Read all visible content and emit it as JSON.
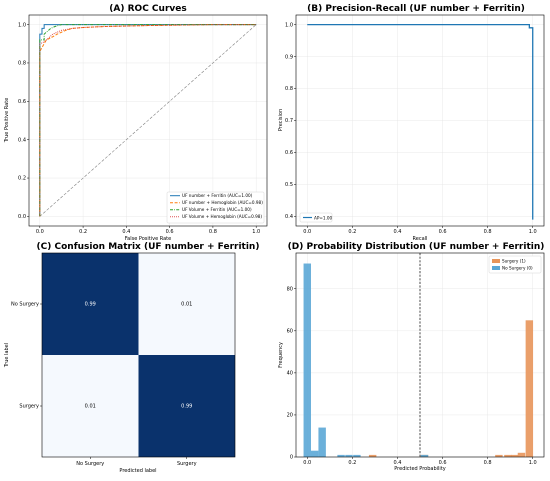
{
  "chart_data": [
    {
      "type": "line",
      "title": "(A) ROC Curves",
      "xlabel": "False Positive Rate",
      "ylabel": "True Positive Rate",
      "xlim": [
        -0.05,
        1.05
      ],
      "ylim": [
        -0.05,
        1.05
      ],
      "xticks": [
        "0.0",
        "0.2",
        "0.4",
        "0.6",
        "0.8",
        "1.0"
      ],
      "yticks": [
        "0.0",
        "0.2",
        "0.4",
        "0.6",
        "0.8",
        "1.0"
      ],
      "grid": true,
      "legend": "lower-right",
      "series": [
        {
          "name": "UF number + Ferritin (AUC=1.00)",
          "color": "#1f77b4",
          "dash": "solid",
          "x": [
            0,
            0,
            0.01,
            0.01,
            0.02,
            0.02,
            1.0
          ],
          "y": [
            0,
            0.95,
            0.95,
            0.98,
            0.98,
            1.0,
            1.0
          ]
        },
        {
          "name": "UF number + Hemoglobin (AUC=0.98)",
          "color": "#ff7f0e",
          "dash": "dashed",
          "x": [
            0,
            0,
            0.01,
            0.02,
            0.03,
            0.05,
            0.08,
            0.1,
            0.12,
            0.15,
            0.2,
            0.3,
            0.5,
            0.8,
            1.0
          ],
          "y": [
            0,
            0.86,
            0.88,
            0.9,
            0.92,
            0.93,
            0.95,
            0.96,
            0.97,
            0.98,
            0.985,
            0.99,
            0.995,
            1.0,
            1.0
          ]
        },
        {
          "name": "UF Volume + Ferritin (AUC=1.00)",
          "color": "#2ca02c",
          "dash": "dashdot",
          "x": [
            0,
            0,
            0.02,
            0.02,
            0.03,
            0.04,
            0.05,
            0.07,
            0.1,
            1.0
          ],
          "y": [
            0,
            0.92,
            0.92,
            0.95,
            0.96,
            0.97,
            0.98,
            0.99,
            1.0,
            1.0
          ]
        },
        {
          "name": "UF Volume + Hemoglobin (AUC=0.98)",
          "color": "#d62728",
          "dash": "dotted",
          "x": [
            0,
            0,
            0.02,
            0.04,
            0.06,
            0.08,
            0.1,
            0.15,
            0.2,
            0.3,
            0.5,
            0.8,
            1.0
          ],
          "y": [
            0,
            0.9,
            0.91,
            0.93,
            0.95,
            0.96,
            0.97,
            0.98,
            0.985,
            0.99,
            0.995,
            1.0,
            1.0
          ]
        },
        {
          "name": "",
          "color": "#808080",
          "dash": "dashed",
          "x": [
            0,
            1
          ],
          "y": [
            0,
            1
          ]
        }
      ]
    },
    {
      "type": "line",
      "title": "(B) Precision-Recall (UF number + Ferritin)",
      "xlabel": "Recall",
      "ylabel": "Precision",
      "xlim": [
        -0.05,
        1.05
      ],
      "ylim": [
        0.37,
        1.03
      ],
      "xticks": [
        "0.0",
        "0.2",
        "0.4",
        "0.6",
        "0.8",
        "1.0"
      ],
      "yticks": [
        "0.4",
        "0.5",
        "0.6",
        "0.7",
        "0.8",
        "0.9",
        "1.0"
      ],
      "grid": true,
      "legend": "lower-left",
      "series": [
        {
          "name": "AP=1.00",
          "color": "#1f77b4",
          "dash": "solid",
          "x": [
            0,
            0.98,
            0.985,
            0.985,
            1.0,
            1.0
          ],
          "y": [
            1.0,
            1.0,
            1.0,
            0.99,
            0.99,
            0.39
          ]
        }
      ]
    },
    {
      "type": "heatmap",
      "title": "(C) Confusion Matrix (UF number + Ferritin)",
      "xlabel": "Predicted label",
      "ylabel": "True label",
      "categories": [
        "No Surgery",
        "Surgery"
      ],
      "values": [
        [
          0.99,
          0.01
        ],
        [
          0.01,
          0.99
        ]
      ],
      "labels": [
        [
          "0.99",
          "0.01"
        ],
        [
          "0.01",
          "0.99"
        ]
      ],
      "colors": {
        "high": "#08306b",
        "low": "#f7fbff"
      }
    },
    {
      "type": "bar",
      "title": "(D) Probability Distribution (UF number + Ferritin)",
      "xlabel": "Predicted Probability",
      "ylabel": "Frequency",
      "xlim": [
        -0.05,
        1.05
      ],
      "ylim": [
        0,
        97
      ],
      "xticks": [
        "0.0",
        "0.2",
        "0.4",
        "0.6",
        "0.8",
        "1.0"
      ],
      "yticks": [
        "0",
        "20",
        "40",
        "60",
        "80"
      ],
      "threshold": 0.5,
      "grid": true,
      "legend": "top-right",
      "bin_width": 0.033,
      "series": [
        {
          "name": "Surgery (1)",
          "color": "#e8955a",
          "x": [
            0.29,
            0.52,
            0.85,
            0.89,
            0.92,
            0.95,
            0.985
          ],
          "values": [
            1,
            1,
            1,
            1,
            1,
            2,
            65
          ]
        },
        {
          "name": "No Surgery (0)",
          "color": "#5ba7d6",
          "x": [
            0.0,
            0.033,
            0.066,
            0.15,
            0.185,
            0.22,
            0.52
          ],
          "values": [
            92,
            3,
            14,
            1,
            1,
            1,
            1
          ]
        }
      ]
    }
  ]
}
